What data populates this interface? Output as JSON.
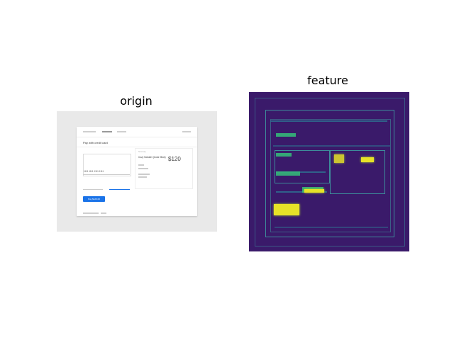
{
  "titles": {
    "origin": "origin",
    "feature": "feature"
  },
  "origin": {
    "header": "Pay with credit card",
    "card_number_value": "1111 1111 1111 1111",
    "pay_button_label": "Pay $120.00",
    "summary": {
      "label": "Summary",
      "product": "Cozy Sweater (Color: Blue)",
      "price": "$120"
    }
  },
  "feature": {
    "colors": {
      "background": "#3a1a6a",
      "edge": "#3d8c9a",
      "hot": "#e6e228",
      "warm": "#35b779"
    }
  }
}
